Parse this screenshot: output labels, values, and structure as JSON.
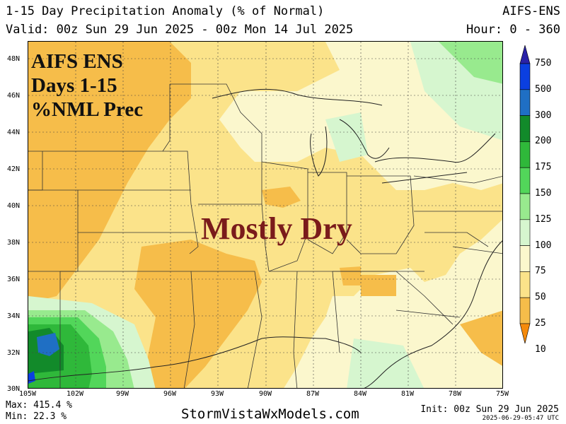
{
  "header": {
    "title": "1-15 Day Precipitation Anomaly (% of Normal)",
    "valid": "Valid: 00z Sun 29 Jun 2025 - 00z Mon 14 Jul 2025",
    "model": "AIFS-ENS",
    "hour": "Hour: 0 - 360"
  },
  "overlay": {
    "line1": "AIFS ENS",
    "line2": "Days 1-15",
    "line3": "%NML Prec",
    "annotation": "Mostly Dry"
  },
  "axes": {
    "lat_labels": [
      "48N",
      "46N",
      "44N",
      "42N",
      "40N",
      "38N",
      "36N",
      "34N",
      "32N",
      "30N"
    ],
    "lon_labels": [
      "105W",
      "102W",
      "99W",
      "96W",
      "93W",
      "90W",
      "87W",
      "84W",
      "81W",
      "78W",
      "75W"
    ]
  },
  "legend": {
    "labels": [
      "750",
      "500",
      "300",
      "200",
      "175",
      "150",
      "125",
      "100",
      "75",
      "50",
      "25",
      "10"
    ],
    "colors": [
      "#2a22a8",
      "#0b3fe0",
      "#1f6fc4",
      "#128a2a",
      "#2fb83a",
      "#52d65a",
      "#98ea8e",
      "#d6f6cf",
      "#fbf7cd",
      "#fbe38a",
      "#f6bd4a",
      "#f58a0b"
    ]
  },
  "footer": {
    "max": "Max: 415.4 %",
    "min": "Min: 22.3 %",
    "site": "StormVistaWxModels.com",
    "init": "Init: 00z Sun 29 Jun 2025",
    "stamp": "2025-06-29-05:47 UTC"
  }
}
